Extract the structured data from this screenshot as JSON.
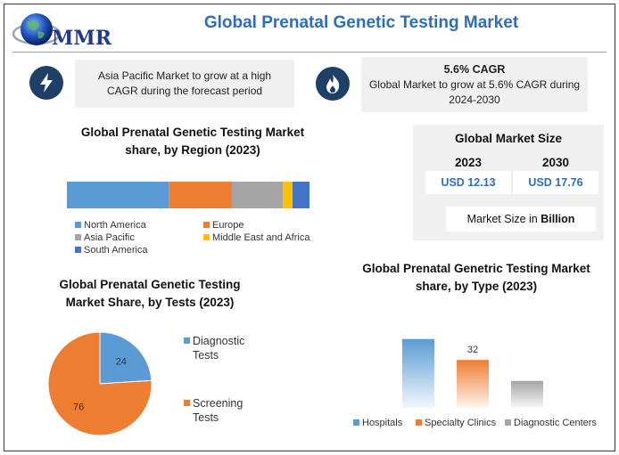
{
  "header": {
    "logo_text": "MMR",
    "title": "Global Prenatal Genetic Testing Market"
  },
  "cards": {
    "left_text": "Asia Pacific Market to grow at a high CAGR during the forecast period",
    "left_icon": "lightning-icon",
    "right_title": "5.6% CAGR",
    "right_text": "Global Market to grow at 5.6% CAGR during 2024-2030",
    "right_icon": "flame-icon"
  },
  "market_size": {
    "title": "Global Market Size",
    "year_a": "2023",
    "year_b": "2030",
    "value_a": "USD 12.13",
    "value_b": "USD 17.76",
    "unit_prefix": "Market Size in ",
    "unit_bold": "Billion"
  },
  "colors": {
    "blue": "#5b9bd5",
    "orange": "#ed7d31",
    "gray": "#a5a5a5",
    "yellow": "#ffc000",
    "dark_blue": "#4472c4",
    "navy": "#1e3f66",
    "title_blue": "#2e6db8"
  },
  "chart_data": [
    {
      "type": "bar",
      "orientation": "horizontal-stacked",
      "title": "Global Prenatal Genetic Testing Market share, by Region (2023)",
      "legend_position": "bottom",
      "series": [
        {
          "name": "North America",
          "value": 42,
          "color": "#5b9bd5"
        },
        {
          "name": "Europe",
          "value": 26,
          "color": "#ed7d31"
        },
        {
          "name": "Asia Pacific",
          "value": 21,
          "color": "#a5a5a5"
        },
        {
          "name": "Middle East and Africa",
          "value": 4,
          "color": "#ffc000"
        },
        {
          "name": "South America",
          "value": 7,
          "color": "#4472c4"
        }
      ]
    },
    {
      "type": "pie",
      "title": "Global Prenatal Genetic Testing Market Share, by Tests (2023)",
      "legend_position": "right",
      "slices": [
        {
          "label": "Diagnostic Tests",
          "value": 24,
          "color": "#5b9bd5"
        },
        {
          "label": "Screening Tests",
          "value": 76,
          "color": "#ed7d31"
        }
      ]
    },
    {
      "type": "bar",
      "title": "Global Prenatal Genetric Testing Market share, by Type (2023)",
      "legend_position": "bottom",
      "categories": [
        "Hospitals",
        "Specialty Clinics",
        "Diagnostic Centers"
      ],
      "values": [
        46,
        32,
        18
      ],
      "data_labels": [
        "",
        "32",
        ""
      ],
      "colors": [
        "#5b9bd5",
        "#ed7d31",
        "#a5a5a5"
      ],
      "ylim": [
        0,
        50
      ]
    }
  ]
}
